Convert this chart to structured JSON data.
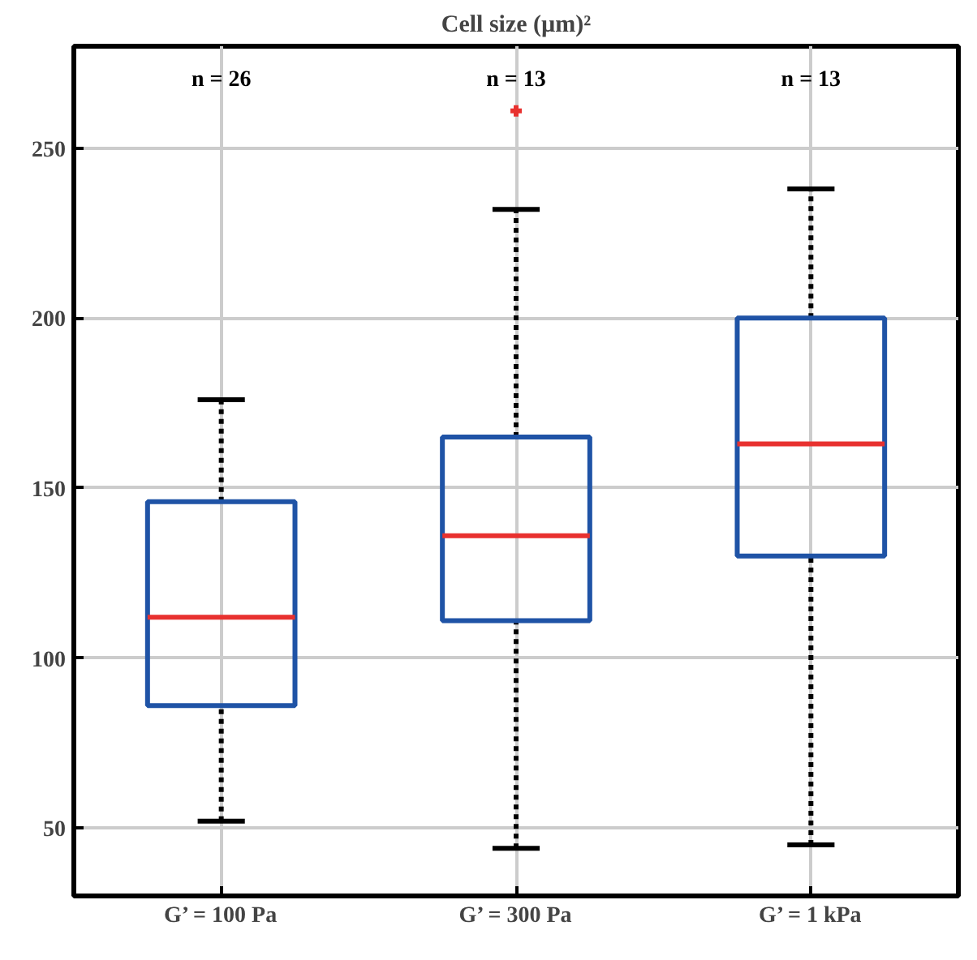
{
  "chart_data": {
    "type": "box",
    "title": "Cell size (µm)²",
    "categories": [
      "G’ = 100 Pa",
      "G’ = 300 Pa",
      "G’ = 1 kPa"
    ],
    "series": [
      {
        "color": "#1f53a6",
        "boxes": [
          {
            "low": 52,
            "q1": 86,
            "median": 112,
            "q3": 146,
            "high": 176
          },
          {
            "low": 44,
            "q1": 111,
            "median": 136,
            "q3": 165,
            "high": 232,
            "outliers": [
              261
            ]
          },
          {
            "low": 45,
            "q1": 130,
            "median": 163,
            "q3": 200,
            "high": 238
          }
        ]
      }
    ],
    "ylim": [
      30,
      280
    ],
    "yticks": [
      50,
      100,
      150,
      200,
      250
    ],
    "grid": true,
    "annotations": [
      "n = 26",
      "n = 13",
      "n = 13"
    ]
  }
}
